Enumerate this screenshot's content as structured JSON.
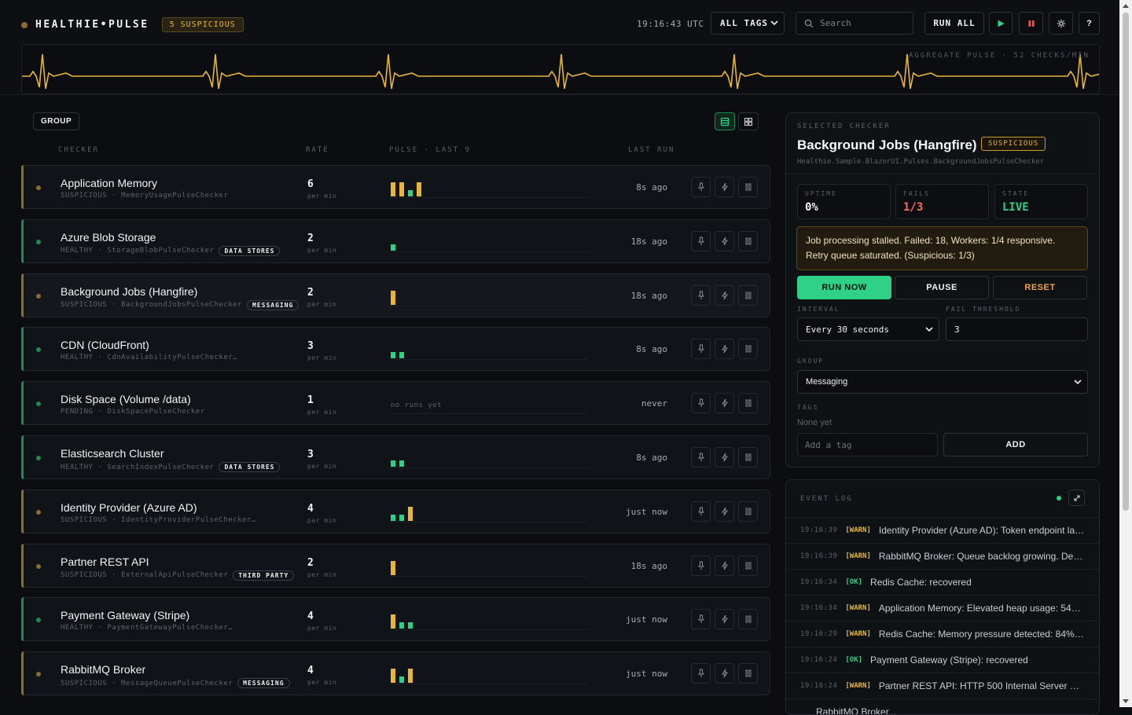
{
  "header": {
    "brand": "HEALTHIE•PULSE",
    "suspicious_badge": "5 SUSPICIOUS",
    "clock": "19:16:43 UTC",
    "tags_filter": "ALL TAGS",
    "search_placeholder": "Search",
    "run_all": "RUN ALL",
    "help": "?",
    "pulse_label": "AGGREGATE PULSE · 52 CHECKS/MIN"
  },
  "list": {
    "group_button": "GROUP",
    "columns": {
      "checker": "CHECKER",
      "rate": "RATE",
      "pulse": "PULSE · LAST 9",
      "last_run": "LAST RUN"
    },
    "rate_unit": "per min",
    "no_runs": "no runs yet",
    "rows": [
      {
        "name": "Application Memory",
        "status": "SUSPICIOUS",
        "checker": "MemoryUsagePulseChecker",
        "group": "",
        "rate": "6",
        "last_run": "8s ago"
      },
      {
        "name": "Azure Blob Storage",
        "status": "HEALTHY",
        "checker": "StorageBlobPulseChecker",
        "group": "DATA STORES",
        "rate": "2",
        "last_run": "18s ago"
      },
      {
        "name": "Background Jobs (Hangfire)",
        "status": "SUSPICIOUS",
        "checker": "BackgroundJobsPulseChecker",
        "group": "MESSAGING",
        "rate": "2",
        "last_run": "18s ago"
      },
      {
        "name": "CDN (CloudFront)",
        "status": "HEALTHY",
        "checker": "CdnAvailabilityPulseChecker…",
        "group": "",
        "rate": "3",
        "last_run": "8s ago"
      },
      {
        "name": "Disk Space (Volume /data)",
        "status": "PENDING",
        "checker": "DiskSpacePulseChecker",
        "group": "",
        "rate": "1",
        "last_run": "never"
      },
      {
        "name": "Elasticsearch Cluster",
        "status": "HEALTHY",
        "checker": "SearchIndexPulseChecker",
        "group": "DATA STORES",
        "rate": "3",
        "last_run": "8s ago"
      },
      {
        "name": "Identity Provider (Azure AD)",
        "status": "SUSPICIOUS",
        "checker": "IdentityProviderPulseChecker…",
        "group": "",
        "rate": "4",
        "last_run": "just now"
      },
      {
        "name": "Partner REST API",
        "status": "SUSPICIOUS",
        "checker": "ExternalApiPulseChecker",
        "group": "THIRD PARTY",
        "rate": "2",
        "last_run": "18s ago"
      },
      {
        "name": "Payment Gateway (Stripe)",
        "status": "HEALTHY",
        "checker": "PaymentGatewayPulseChecker…",
        "group": "",
        "rate": "4",
        "last_run": "just now"
      },
      {
        "name": "RabbitMQ Broker",
        "status": "SUSPICIOUS",
        "checker": "MessageQueuePulseChecker",
        "group": "MESSAGING",
        "rate": "4",
        "last_run": "just now"
      }
    ]
  },
  "detail": {
    "label": "SELECTED CHECKER",
    "title": "Background Jobs (Hangfire)",
    "status": "SUSPICIOUS",
    "class_name": "Healthie.Sample.BlazorUI.Pulses.BackgroundJobsPulseChecker",
    "stats": {
      "uptime_label": "UPTIME",
      "uptime": "0%",
      "fails_label": "FAILS",
      "fails": "1/3",
      "state_label": "STATE",
      "state": "LIVE"
    },
    "message_line1": "Job processing stalled. Failed: 18, Workers: 1/4 responsive.",
    "message_line2": "Retry queue saturated. (Suspicious: 1/3)",
    "run_now": "RUN NOW",
    "pause": "PAUSE",
    "reset": "RESET",
    "interval_label": "INTERVAL",
    "interval": "Every 30 seconds",
    "threshold_label": "FAIL THRESHOLD",
    "threshold": "3",
    "group_label": "GROUP",
    "group": "Messaging",
    "tags_label": "TAGS",
    "tags_empty": "None yet",
    "tag_placeholder": "Add a tag",
    "add": "ADD"
  },
  "event_log": {
    "label": "EVENT LOG",
    "events": [
      {
        "time": "19:16:39",
        "level": "[WARN]",
        "message": "Identity Provider (Azure AD): Token endpoint lat..."
      },
      {
        "time": "19:16:39",
        "level": "[WARN]",
        "message": "RabbitMQ Broker: Queue backlog growing. Dep..."
      },
      {
        "time": "19:16:34",
        "level": "[OK]",
        "message": "Redis Cache: recovered"
      },
      {
        "time": "19:16:34",
        "level": "[WARN]",
        "message": "Application Memory: Elevated heap usage: 547 ..."
      },
      {
        "time": "19:16:29",
        "level": "[WARN]",
        "message": "Redis Cache: Memory pressure detected: 84% u..."
      },
      {
        "time": "19:16:24",
        "level": "[OK]",
        "message": "Payment Gateway (Stripe): recovered"
      },
      {
        "time": "19:16:24",
        "level": "[WARN]",
        "message": "Partner REST API: HTTP 500 Internal Server Erro..."
      },
      {
        "time": "",
        "level": "",
        "message": "RabbitMQ Broker..."
      }
    ]
  },
  "colors": {
    "healthy": "#2fd186",
    "suspicious": "#e8b53c",
    "pending": "#5b626b",
    "fail": "#ff6b5a"
  }
}
